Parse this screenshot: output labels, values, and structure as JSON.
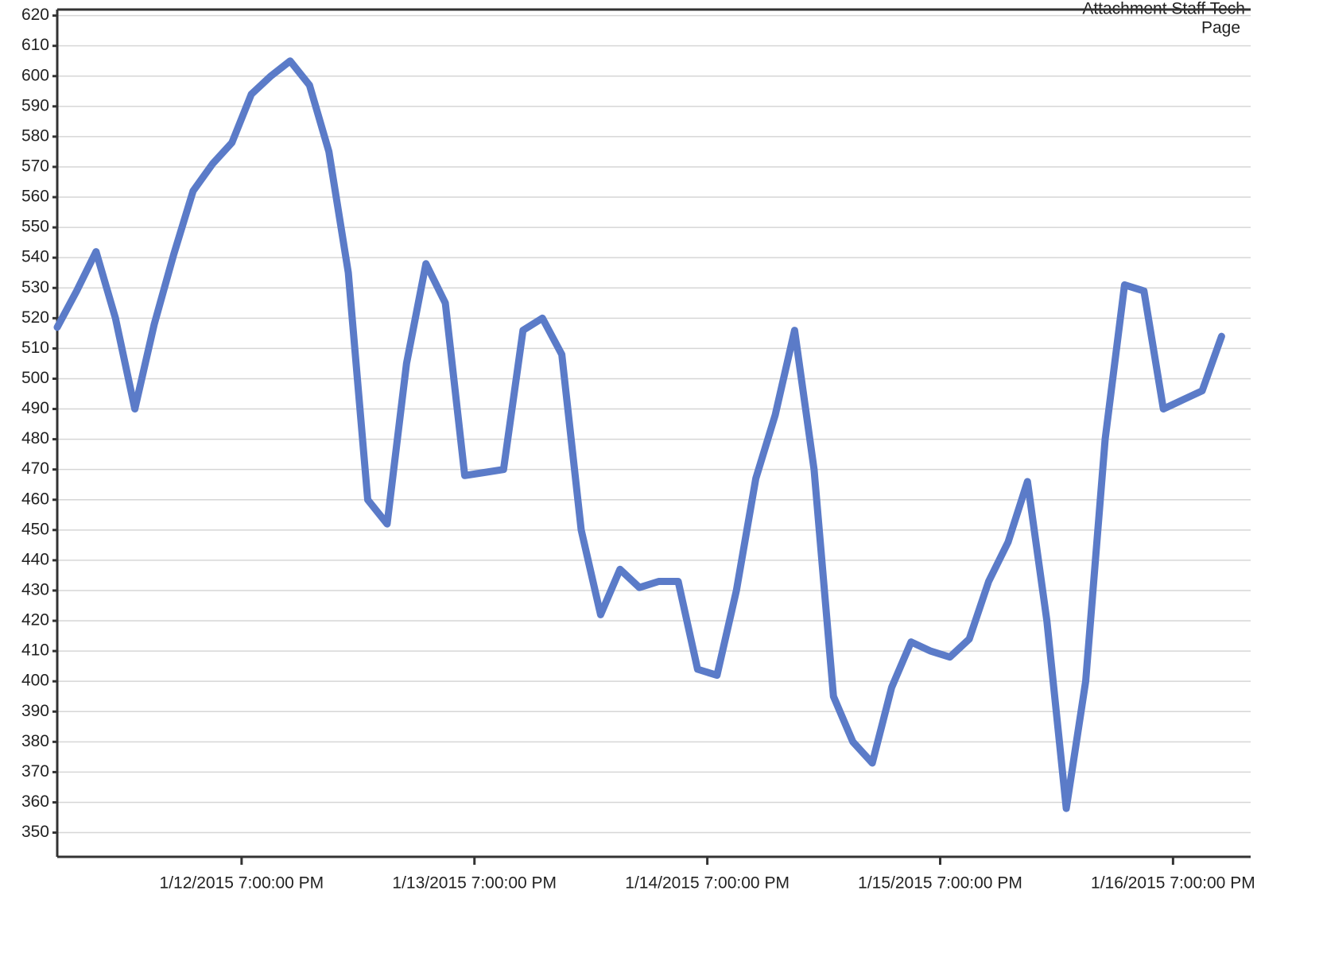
{
  "chart_data": {
    "type": "line",
    "annotations": [
      "Attachment Staff Tech",
      "Page"
    ],
    "x": [
      "1/12/2015 12:00:00 AM",
      "1/12/2015 2:00:00 AM",
      "1/12/2015 4:00:00 AM",
      "1/12/2015 6:00:00 AM",
      "1/12/2015 8:00:00 AM",
      "1/12/2015 10:00:00 AM",
      "1/12/2015 12:00:00 PM",
      "1/12/2015 2:00:00 PM",
      "1/12/2015 4:00:00 PM",
      "1/12/2015 6:00:00 PM",
      "1/12/2015 8:00:00 PM",
      "1/12/2015 10:00:00 PM",
      "1/13/2015 12:00:00 AM",
      "1/13/2015 2:00:00 AM",
      "1/13/2015 4:00:00 AM",
      "1/13/2015 6:00:00 AM",
      "1/13/2015 8:00:00 AM",
      "1/13/2015 10:00:00 AM",
      "1/13/2015 12:00:00 PM",
      "1/13/2015 2:00:00 PM",
      "1/13/2015 4:00:00 PM",
      "1/13/2015 6:00:00 PM",
      "1/13/2015 8:00:00 PM",
      "1/13/2015 10:00:00 PM",
      "1/14/2015 12:00:00 AM",
      "1/14/2015 2:00:00 AM",
      "1/14/2015 4:00:00 AM",
      "1/14/2015 6:00:00 AM",
      "1/14/2015 8:00:00 AM",
      "1/14/2015 10:00:00 AM",
      "1/14/2015 12:00:00 PM",
      "1/14/2015 2:00:00 PM",
      "1/14/2015 4:00:00 PM",
      "1/14/2015 6:00:00 PM",
      "1/14/2015 8:00:00 PM",
      "1/14/2015 10:00:00 PM",
      "1/15/2015 12:00:00 AM",
      "1/15/2015 2:00:00 AM",
      "1/15/2015 4:00:00 AM",
      "1/15/2015 6:00:00 AM",
      "1/15/2015 8:00:00 AM",
      "1/15/2015 10:00:00 AM",
      "1/15/2015 12:00:00 PM",
      "1/15/2015 2:00:00 PM",
      "1/15/2015 4:00:00 PM",
      "1/15/2015 6:00:00 PM",
      "1/15/2015 8:00:00 PM",
      "1/15/2015 10:00:00 PM",
      "1/16/2015 12:00:00 AM",
      "1/16/2015 2:00:00 AM",
      "1/16/2015 4:00:00 AM",
      "1/16/2015 6:00:00 AM",
      "1/16/2015 8:00:00 AM",
      "1/16/2015 10:00:00 AM",
      "1/16/2015 12:00:00 PM",
      "1/16/2015 2:00:00 PM",
      "1/16/2015 4:00:00 PM",
      "1/16/2015 6:00:00 PM",
      "1/16/2015 8:00:00 PM",
      "1/16/2015 10:00:00 PM",
      "1/17/2015 12:00:00 AM"
    ],
    "series": [
      {
        "color": "#5b7bc8",
        "values": [
          517,
          529,
          542,
          520,
          490,
          518,
          541,
          562,
          571,
          578,
          594,
          600,
          605,
          597,
          575,
          535,
          460,
          452,
          505,
          538,
          525,
          468,
          469,
          470,
          516,
          520,
          508,
          450,
          422,
          437,
          431,
          433,
          433,
          404,
          402,
          430,
          467,
          488,
          516,
          470,
          395,
          380,
          373,
          398,
          413,
          410,
          408,
          414,
          433,
          446,
          466,
          420,
          358,
          400,
          480,
          531,
          529,
          490,
          493,
          496,
          514
        ]
      }
    ],
    "xlim": [
      "1/12/2015 12:00:00 AM",
      "1/17/2015 3:00:00 AM"
    ],
    "xticks": [
      "1/12/2015 7:00:00 PM",
      "1/13/2015 7:00:00 PM",
      "1/14/2015 7:00:00 PM",
      "1/15/2015 7:00:00 PM",
      "1/16/2015 7:00:00 PM"
    ],
    "ylim": [
      342,
      622
    ],
    "yticks": [
      350,
      360,
      370,
      380,
      390,
      400,
      410,
      420,
      430,
      440,
      450,
      460,
      470,
      480,
      490,
      500,
      510,
      520,
      530,
      540,
      550,
      560,
      570,
      580,
      590,
      600,
      610,
      620
    ],
    "grid": true
  }
}
